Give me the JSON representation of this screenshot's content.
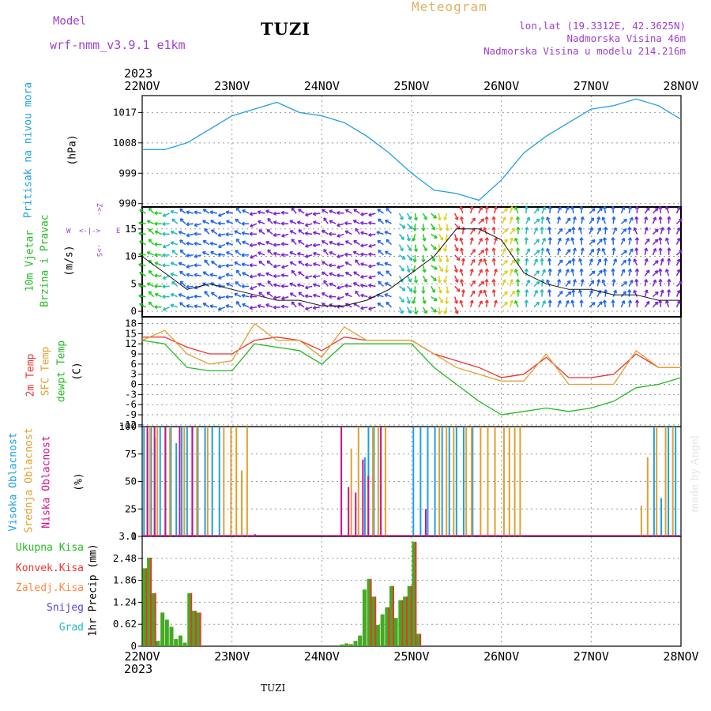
{
  "header": {
    "model_label": "Model",
    "model_value": "wrf-nmm_v3.9.1  e1km",
    "station": "TUZI",
    "product": "Meteogram",
    "coords": "lon,lat (19.3312E, 42.3625N)",
    "altitude": "Nadmorska Visina 46m",
    "model_altitude": "Nadmorska Visina u modelu 214.216m"
  },
  "time_axis": {
    "year": "2023",
    "dates": [
      "22NOV",
      "23NOV",
      "24NOV",
      "25NOV",
      "26NOV",
      "27NOV",
      "28NOV"
    ]
  },
  "footer": {
    "station": "TUZI",
    "credit": "made by Angel"
  },
  "colors": {
    "pressure": "#1ea0e6",
    "wind_label": "#22bb22",
    "temp_2m": "#ee3333",
    "temp_sfc": "#e0a030",
    "dewpoint": "#22bb22",
    "cloud_high": "#1ea0e6",
    "cloud_mid": "#e0a030",
    "cloud_low": "#cc1188",
    "precip_total": "#44aa22",
    "precip_conv": "#ee3333",
    "precip_frz": "#ff8844",
    "precip_snow": "#5544dd",
    "precip_hail": "#22bbbb"
  },
  "chart_data": [
    {
      "type": "line",
      "name": "pressure",
      "labels": [
        "Pritisak na nivou mora",
        "(hPa)"
      ],
      "yticks": [
        990,
        999,
        1008,
        1017
      ],
      "ylim": [
        989,
        1022
      ],
      "series": [
        {
          "x": [
            0,
            0.25,
            0.5,
            0.75,
            1,
            1.25,
            1.5,
            1.75,
            2,
            2.25,
            2.5,
            2.75,
            3,
            3.25,
            3.5,
            3.75,
            4,
            4.25,
            4.5,
            4.75,
            5,
            5.25,
            5.5,
            5.75,
            6
          ],
          "values": [
            1006,
            1006,
            1008,
            1012,
            1016,
            1018,
            1020,
            1017,
            1016,
            1014,
            1010,
            1005,
            999,
            994,
            993,
            991,
            997,
            1005,
            1010,
            1014,
            1018,
            1019,
            1021,
            1019,
            1015
          ]
        }
      ]
    },
    {
      "type": "line",
      "name": "wind",
      "labels": [
        "10m Vjetar",
        "Brzina i Pravac",
        "(m/s)"
      ],
      "yticks": [
        0,
        5,
        10,
        15
      ],
      "ylim": [
        -1,
        19
      ],
      "series": [
        {
          "x": [
            0,
            0.25,
            0.5,
            0.75,
            1,
            1.25,
            1.5,
            1.75,
            2,
            2.25,
            2.5,
            2.75,
            3,
            3.25,
            3.5,
            3.75,
            4,
            4.25,
            4.5,
            4.75,
            5,
            5.25,
            5.5,
            5.75,
            6
          ],
          "values": [
            10,
            7,
            4,
            5,
            4,
            3,
            2,
            2,
            1,
            1,
            2,
            4,
            7,
            10,
            15,
            15,
            13,
            7,
            5,
            4,
            4,
            3,
            3,
            2,
            2
          ]
        }
      ]
    },
    {
      "type": "line",
      "name": "temperature",
      "labels": [
        "2m Temp",
        "SFC Temp",
        "dewpt Temp",
        "(C)"
      ],
      "yticks": [
        -12,
        -9,
        -6,
        -3,
        0,
        3,
        6,
        9,
        12,
        15,
        18
      ],
      "ylim": [
        -12.5,
        20
      ],
      "series": [
        {
          "name": "2m Temp",
          "x": [
            0,
            0.25,
            0.5,
            0.75,
            1,
            1.25,
            1.5,
            1.75,
            2,
            2.25,
            2.5,
            2.75,
            3,
            3.25,
            3.5,
            3.75,
            4,
            4.25,
            4.5,
            4.75,
            5,
            5.25,
            5.5,
            5.75,
            6
          ],
          "values": [
            14,
            14,
            11,
            9,
            9,
            13,
            14,
            13,
            10,
            14,
            13,
            13,
            13,
            9,
            7,
            5,
            2,
            3,
            8,
            2,
            2,
            3,
            9,
            5,
            5
          ]
        },
        {
          "name": "SFC Temp",
          "x": [
            0,
            0.25,
            0.5,
            0.75,
            1,
            1.25,
            1.5,
            1.75,
            2,
            2.25,
            2.5,
            2.75,
            3,
            3.25,
            3.5,
            3.75,
            4,
            4.25,
            4.5,
            4.75,
            5,
            5.25,
            5.5,
            5.75,
            6
          ],
          "values": [
            13,
            16,
            9,
            6,
            7,
            18,
            13,
            13,
            8,
            17,
            13,
            13,
            13,
            9,
            5,
            3,
            1,
            1,
            9,
            0,
            0,
            0,
            10,
            5,
            5
          ]
        },
        {
          "name": "dewpt Temp",
          "x": [
            0,
            0.25,
            0.5,
            0.75,
            1,
            1.25,
            1.5,
            1.75,
            2,
            2.25,
            2.5,
            2.75,
            3,
            3.25,
            3.5,
            3.75,
            4,
            4.25,
            4.5,
            4.75,
            5,
            5.25,
            5.5,
            5.75,
            6
          ],
          "values": [
            13,
            12,
            5,
            4,
            4,
            12,
            11,
            10,
            6,
            12,
            12,
            12,
            12,
            5,
            0,
            -5,
            -9,
            -8,
            -7,
            -8,
            -7,
            -5,
            -1,
            0,
            2
          ]
        }
      ]
    },
    {
      "type": "bar",
      "name": "cloud_cover",
      "labels": [
        "Visoka Oblacnost",
        "Srednja Oblacnost",
        "Niska Oblacnost",
        "(%)"
      ],
      "yticks": [
        0,
        25,
        50,
        75,
        100
      ],
      "ylim": [
        0,
        100
      ],
      "series": [
        {
          "name": "Visoka Oblacnost",
          "x": [
            0.02,
            0.06,
            0.1,
            0.14,
            0.2,
            0.26,
            0.32,
            0.38,
            0.44,
            0.5,
            0.56,
            0.62,
            0.7,
            0.78,
            0.86,
            2.48,
            2.52,
            2.58,
            3.02,
            3.1,
            3.18,
            3.26,
            3.34,
            3.42,
            3.5,
            3.58,
            3.68,
            5.7,
            5.78,
            5.86,
            5.94
          ],
          "values": [
            100,
            95,
            100,
            90,
            100,
            100,
            100,
            85,
            100,
            100,
            100,
            100,
            100,
            100,
            100,
            72,
            100,
            100,
            100,
            100,
            100,
            100,
            100,
            100,
            100,
            100,
            100,
            100,
            35,
            100,
            100
          ]
        },
        {
          "name": "Srednja Oblacnost",
          "x": [
            0.08,
            0.16,
            0.3,
            0.46,
            0.6,
            0.72,
            0.9,
            0.98,
            1.04,
            1.1,
            1.16,
            2.32,
            2.4,
            2.56,
            2.62,
            2.7,
            3.3,
            3.38,
            3.46,
            3.6,
            3.66,
            3.76,
            3.84,
            3.92,
            4.02,
            4.08,
            4.14,
            4.2,
            5.55,
            5.62,
            5.72,
            5.82,
            5.9
          ],
          "values": [
            100,
            100,
            100,
            100,
            100,
            100,
            100,
            100,
            100,
            60,
            100,
            80,
            100,
            100,
            100,
            100,
            100,
            100,
            100,
            100,
            100,
            100,
            100,
            100,
            100,
            100,
            100,
            100,
            28,
            72,
            100,
            100,
            100
          ]
        },
        {
          "name": "Niska Oblacnost",
          "x": [
            0.04,
            0.12,
            0.24,
            0.4,
            0.54,
            1.24,
            2.2,
            2.28,
            2.36,
            2.44,
            2.5,
            2.64,
            3.14
          ],
          "values": [
            100,
            100,
            100,
            100,
            100,
            2,
            100,
            45,
            40,
            70,
            55,
            100,
            25
          ]
        }
      ]
    },
    {
      "type": "bar",
      "name": "precipitation",
      "labels": [
        "1hr Precip (mm)"
      ],
      "legend": [
        "Ukupna Kisa",
        "Konvek.Kisa",
        "Zaledj.Kisa",
        "Snijeg",
        "Grad"
      ],
      "yticks": [
        0,
        0.62,
        1.24,
        1.86,
        2.48,
        3.1
      ],
      "ylim": [
        0,
        3.1
      ],
      "series": [
        {
          "name": "Ukupna Kisa",
          "x": [
            0.03,
            0.08,
            0.13,
            0.18,
            0.23,
            0.28,
            0.33,
            0.38,
            0.43,
            0.48,
            0.53,
            0.58,
            0.63,
            2.23,
            2.28,
            2.33,
            2.38,
            2.43,
            2.48,
            2.53,
            2.58,
            2.63,
            2.68,
            2.73,
            2.78,
            2.83,
            2.88,
            2.93,
            2.98,
            3.03,
            3.08
          ],
          "values": [
            2.2,
            2.5,
            1.5,
            0.15,
            0.95,
            0.75,
            0.55,
            0.2,
            0.3,
            0.1,
            1.5,
            1.0,
            0.95,
            0.05,
            0.08,
            0.06,
            0.15,
            0.3,
            1.6,
            1.9,
            1.4,
            0.6,
            0.9,
            1.1,
            1.7,
            0.8,
            1.3,
            1.4,
            1.7,
            2.95,
            0.35
          ]
        },
        {
          "name": "Konvek.Kisa",
          "x": [
            0.03,
            0.08,
            0.13,
            0.53,
            0.58,
            0.63,
            2.53,
            2.58,
            2.73,
            2.78,
            2.88,
            2.93,
            2.98,
            3.03,
            3.08
          ],
          "values": [
            2.2,
            2.5,
            1.5,
            1.5,
            1.0,
            0.95,
            1.9,
            1.4,
            1.1,
            1.7,
            1.3,
            1.4,
            1.7,
            2.95,
            0.35
          ]
        }
      ]
    }
  ]
}
